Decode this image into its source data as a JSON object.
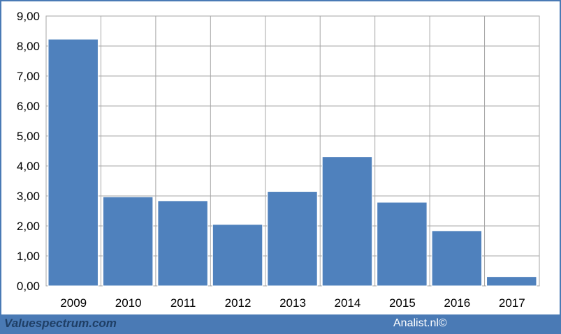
{
  "chart_data": {
    "type": "bar",
    "categories": [
      "2009",
      "2010",
      "2011",
      "2012",
      "2013",
      "2014",
      "2015",
      "2016",
      "2017"
    ],
    "values": [
      8.23,
      2.97,
      2.84,
      2.05,
      3.15,
      4.31,
      2.79,
      1.84,
      0.31
    ],
    "ylim": [
      0,
      9
    ],
    "yticks": [
      "0,00",
      "1,00",
      "2,00",
      "3,00",
      "4,00",
      "5,00",
      "6,00",
      "7,00",
      "8,00",
      "9,00"
    ],
    "grid": true,
    "bar_color": "#4f81bd"
  },
  "footer": {
    "source_left": "Valuespectrum.com",
    "source_right": "Analist.nl©"
  }
}
